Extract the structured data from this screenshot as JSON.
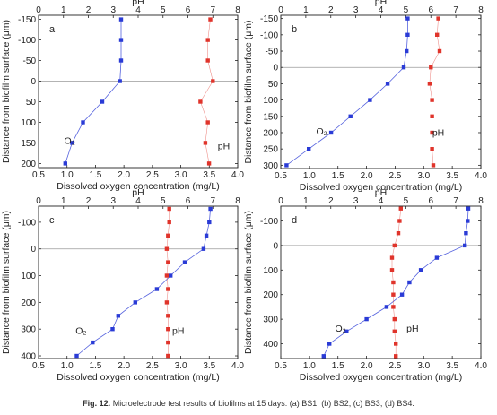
{
  "caption": {
    "label": "Fig. 12.",
    "text": "Microelectrode test results of biofilms at 15 days: (a) BS1, (b) BS2, (c) BS3, (d) BS4."
  },
  "colors": {
    "oxygen": "#2a3bd6",
    "ph": "#e0342b",
    "axis": "#222222",
    "zero_line": "#9a9a9a"
  },
  "chart_data": [
    {
      "panel": "a",
      "type": "line",
      "xlabel": "Dissolved oxygen concentration (mg/L)",
      "ylabel": "Distance from biofilm surface (μm)",
      "top_xlabel": "pH",
      "xlim": [
        0.5,
        4.0
      ],
      "xticks": [
        0.5,
        1.0,
        1.5,
        2.0,
        2.5,
        3.0,
        3.5,
        4.0
      ],
      "xtick_labels": [
        "0.5",
        "1.0",
        "1.5",
        "2.0",
        "2.5",
        "3.0",
        "3.5",
        "4.0"
      ],
      "top_xlim": [
        0,
        8
      ],
      "top_xticks": [
        0,
        1,
        2,
        3,
        4,
        5,
        6,
        7,
        8
      ],
      "ylim": [
        -160,
        210
      ],
      "yticks": [
        -150,
        -100,
        -50,
        0,
        50,
        100,
        150,
        200
      ],
      "ytick_labels": [
        "-150",
        "-100",
        "-50",
        "0",
        "50",
        "100",
        "150",
        "200"
      ],
      "series": [
        {
          "name": "O₂",
          "axis": "bottom",
          "depth": [
            -150,
            -100,
            -50,
            0,
            50,
            100,
            150,
            200
          ],
          "values": [
            1.95,
            1.95,
            1.95,
            1.93,
            1.62,
            1.28,
            1.09,
            0.97
          ]
        },
        {
          "name": "pH",
          "axis": "top",
          "depth": [
            -150,
            -100,
            -50,
            0,
            50,
            100,
            150,
            200
          ],
          "values": [
            6.9,
            6.8,
            6.8,
            7.0,
            6.5,
            6.8,
            6.7,
            6.85
          ]
        }
      ]
    },
    {
      "panel": "b",
      "type": "line",
      "xlabel": "Dissolved oxygen concentration (mg/L)",
      "ylabel": "Distance from biofilm surface (μm)",
      "top_xlabel": "pH",
      "xlim": [
        0.5,
        4.0
      ],
      "xticks": [
        0.5,
        1.0,
        1.5,
        2.0,
        2.5,
        3.0,
        3.5,
        4.0
      ],
      "xtick_labels": [
        "0.5",
        "1.0",
        "1.5",
        "2.0",
        "2.5",
        "3.0",
        "3.5",
        "4.0"
      ],
      "top_xlim": [
        0,
        8
      ],
      "top_xticks": [
        0,
        1,
        2,
        3,
        4,
        5,
        6,
        7,
        8
      ],
      "ylim": [
        -160,
        310
      ],
      "yticks": [
        -150,
        -100,
        -50,
        0,
        50,
        100,
        150,
        200,
        250,
        300
      ],
      "ytick_labels": [
        "-150",
        "-100",
        "-50",
        "0",
        "50",
        "100",
        "150",
        "200",
        "250",
        "300"
      ],
      "series": [
        {
          "name": "O₂",
          "axis": "bottom",
          "depth": [
            -150,
            -100,
            -50,
            0,
            50,
            100,
            150,
            200,
            250,
            300
          ],
          "values": [
            2.72,
            2.72,
            2.7,
            2.65,
            2.37,
            2.06,
            1.72,
            1.38,
            0.99,
            0.6
          ]
        },
        {
          "name": "pH",
          "axis": "top",
          "depth": [
            -150,
            -100,
            -50,
            0,
            50,
            100,
            150,
            200,
            250,
            300
          ],
          "values": [
            6.3,
            6.25,
            6.35,
            6.0,
            5.95,
            6.05,
            6.05,
            6.05,
            6.05,
            6.1
          ]
        }
      ]
    },
    {
      "panel": "c",
      "type": "line",
      "xlabel": "Dissolved oxygen concentration (mg/L)",
      "ylabel": "Distance from biofilm surface (μm)",
      "top_xlabel": "pH",
      "xlim": [
        0.5,
        4.0
      ],
      "xticks": [
        0.5,
        1.0,
        1.5,
        2.0,
        2.5,
        3.0,
        3.5,
        4.0
      ],
      "xtick_labels": [
        "0.5",
        "1.0",
        "1.5",
        "2.0",
        "2.5",
        "3.0",
        "3.5",
        "4.0"
      ],
      "top_xlim": [
        0,
        8
      ],
      "top_xticks": [
        0,
        1,
        2,
        3,
        4,
        5,
        6,
        7,
        8
      ],
      "ylim": [
        -160,
        410
      ],
      "yticks": [
        -100,
        0,
        100,
        200,
        300,
        400
      ],
      "ytick_labels": [
        "-100",
        "0",
        "100",
        "200",
        "300",
        "400"
      ],
      "series": [
        {
          "name": "O₂",
          "axis": "bottom",
          "depth": [
            -150,
            -100,
            -50,
            0,
            50,
            100,
            150,
            200,
            250,
            300,
            350,
            400
          ],
          "values": [
            3.52,
            3.5,
            3.45,
            3.4,
            3.07,
            2.82,
            2.58,
            2.2,
            1.9,
            1.8,
            1.45,
            1.17
          ]
        },
        {
          "name": "pH",
          "axis": "top",
          "depth": [
            -150,
            -100,
            -50,
            0,
            50,
            100,
            150,
            200,
            250,
            300,
            350,
            400
          ],
          "values": [
            5.25,
            5.25,
            5.2,
            5.15,
            5.2,
            5.15,
            5.2,
            5.15,
            5.2,
            5.2,
            5.2,
            5.2
          ]
        }
      ]
    },
    {
      "panel": "d",
      "type": "line",
      "xlabel": "Dissolved oxygen concentration (mg/L)",
      "ylabel": "Distance from biofilm surface (μm)",
      "top_xlabel": "pH",
      "xlim": [
        0.5,
        4.0
      ],
      "xticks": [
        0.5,
        1.0,
        1.5,
        2.0,
        2.5,
        3.0,
        3.5,
        4.0
      ],
      "xtick_labels": [
        "0.5",
        "1.0",
        "1.5",
        "2.0",
        "2.5",
        "3.0",
        "3.5",
        "4.0"
      ],
      "top_xlim": [
        0,
        8
      ],
      "top_xticks": [
        0,
        1,
        2,
        3,
        4,
        5,
        6,
        7,
        8
      ],
      "ylim": [
        -160,
        460
      ],
      "yticks": [
        -100,
        0,
        100,
        200,
        300,
        400
      ],
      "ytick_labels": [
        "-100",
        "0",
        "100",
        "200",
        "300",
        "400"
      ],
      "series": [
        {
          "name": "O₂",
          "axis": "bottom",
          "depth": [
            -150,
            -100,
            -50,
            0,
            50,
            100,
            150,
            200,
            250,
            300,
            350,
            400,
            450
          ],
          "values": [
            3.78,
            3.77,
            3.74,
            3.72,
            3.23,
            2.95,
            2.75,
            2.62,
            2.35,
            2.0,
            1.65,
            1.35,
            1.25
          ]
        },
        {
          "name": "pH",
          "axis": "top",
          "depth": [
            -150,
            -100,
            -50,
            0,
            50,
            100,
            150,
            200,
            250,
            300,
            350,
            400,
            450
          ],
          "values": [
            4.8,
            4.75,
            4.7,
            4.55,
            4.45,
            4.45,
            4.5,
            4.5,
            4.5,
            4.55,
            4.55,
            4.6,
            4.6
          ]
        }
      ]
    }
  ]
}
